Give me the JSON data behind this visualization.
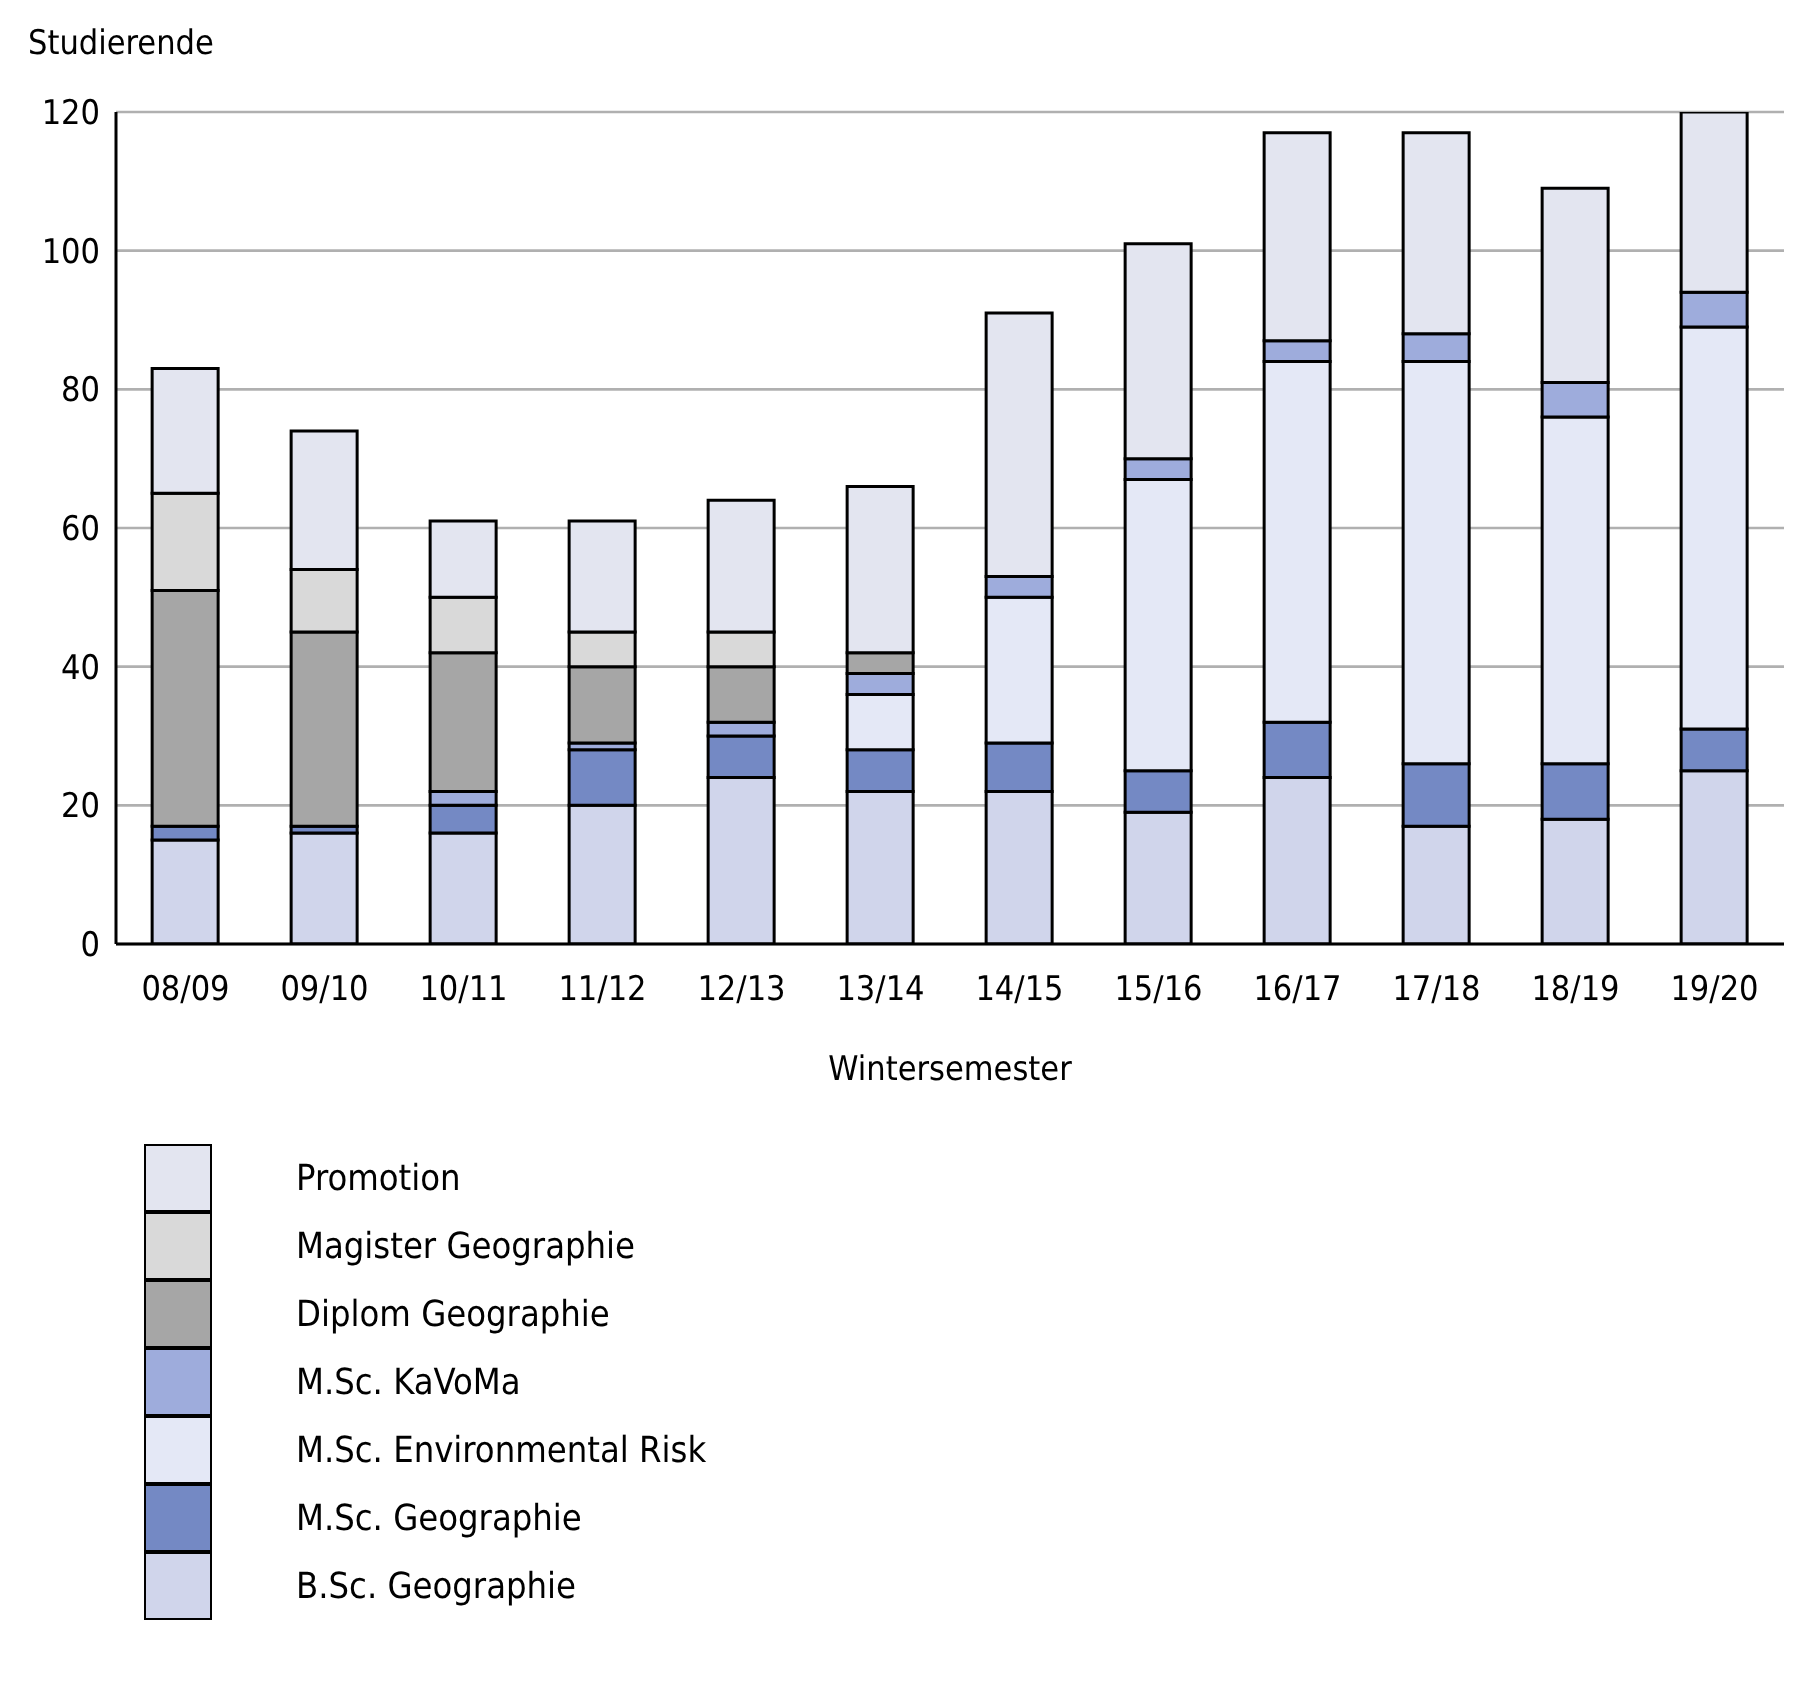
{
  "chart_data": {
    "type": "bar",
    "stacked": true,
    "ylabel": "Studierende",
    "xlabel": "Wintersemester",
    "categories": [
      "08/09",
      "09/10",
      "10/11",
      "11/12",
      "12/13",
      "13/14",
      "14/15",
      "15/16",
      "16/17",
      "17/18",
      "18/19",
      "19/20"
    ],
    "series": [
      {
        "name": "B.Sc. Geographie",
        "color": "#d0d5eb",
        "values": [
          15,
          16,
          16,
          20,
          24,
          22,
          22,
          19,
          24,
          17,
          18,
          25
        ]
      },
      {
        "name": "M.Sc. Geographie",
        "color": "#7489c4",
        "values": [
          2,
          1,
          4,
          8,
          6,
          6,
          7,
          6,
          8,
          9,
          8,
          6
        ]
      },
      {
        "name": "M.Sc. Environmental Risk",
        "color": "#e4e8f6",
        "values": [
          null,
          null,
          null,
          null,
          null,
          8,
          21,
          42,
          52,
          58,
          50,
          58
        ]
      },
      {
        "name": "M.Sc. KaVoMa",
        "color": "#9eacdc",
        "values": [
          null,
          null,
          2,
          1,
          2,
          3,
          3,
          3,
          3,
          4,
          5,
          5
        ]
      },
      {
        "name": "Diplom Geographie",
        "color": "#a6a6a6",
        "values": [
          34,
          28,
          20,
          11,
          8,
          3,
          null,
          null,
          null,
          null,
          null,
          null
        ]
      },
      {
        "name": "Magister Geographie",
        "color": "#d9d9d9",
        "values": [
          14,
          9,
          8,
          5,
          5,
          null,
          null,
          null,
          null,
          null,
          null,
          null
        ]
      },
      {
        "name": "Promotion",
        "color": "#e3e5f0",
        "values": [
          18,
          20,
          11,
          16,
          19,
          24,
          38,
          31,
          30,
          29,
          28,
          26
        ]
      }
    ],
    "ylim": [
      0,
      120
    ],
    "yticks": [
      0,
      20,
      40,
      60,
      80,
      100,
      120
    ],
    "grid": "y",
    "legend": "bottom"
  }
}
